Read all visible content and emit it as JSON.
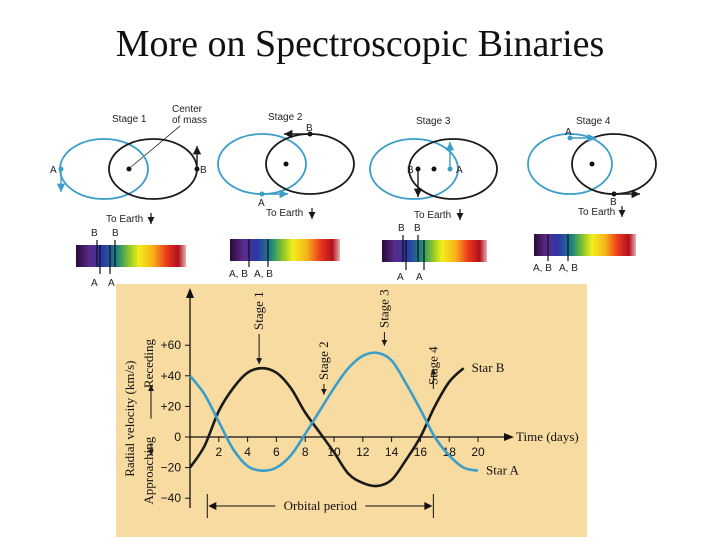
{
  "title": "More on Spectroscopic Binaries",
  "stages": [
    {
      "label": "Stage 1",
      "center_of_mass": "Center\nof mass",
      "star_a": "A",
      "star_b": "B",
      "to_earth": "To Earth",
      "spectrum_top": [
        "B",
        "B"
      ],
      "spectrum_bottom": [
        "A",
        "A"
      ]
    },
    {
      "label": "Stage 2",
      "star_a": "A",
      "star_b": "B",
      "to_earth": "To Earth",
      "spectrum_bottom": [
        "A, B",
        "A, B"
      ]
    },
    {
      "label": "Stage 3",
      "star_a": "A",
      "star_b": "B",
      "to_earth": "To Earth",
      "spectrum_top": [
        "B",
        "B"
      ],
      "spectrum_bottom": [
        "A",
        "A"
      ]
    },
    {
      "label": "Stage 4",
      "star_a": "A",
      "star_b": "B",
      "to_earth": "To Earth",
      "spectrum_bottom": [
        "A, B",
        "A, B"
      ]
    }
  ],
  "colors": {
    "star_a_orbit": "#3a9ec9",
    "star_b_orbit": "#1a1a1a",
    "graph_bg": "#f8dba0"
  },
  "chart_data": {
    "type": "line",
    "xlabel": "Time (days)",
    "ylabel": "Radial velocity (km/s)",
    "ylabel_receding": "Receding",
    "ylabel_approaching": "Approaching",
    "xlim": [
      0,
      21
    ],
    "ylim": [
      -45,
      70
    ],
    "xticks": [
      2,
      4,
      6,
      8,
      10,
      12,
      14,
      16,
      18,
      20
    ],
    "xtick_labels": [
      "2",
      "4",
      "6",
      "8",
      "10",
      "12",
      "14",
      "16",
      "18",
      "20"
    ],
    "yticks": [
      60,
      40,
      20,
      0,
      -20,
      -40
    ],
    "ytick_labels": [
      "+60",
      "+40",
      "+20",
      "0",
      "−20",
      "−40"
    ],
    "series": [
      {
        "name": "Star B",
        "color": "#1a1a1a",
        "x": [
          0,
          1,
          2,
          3,
          4,
          5,
          6,
          7,
          8,
          9,
          10,
          11,
          12,
          13,
          14,
          15,
          16,
          17,
          18,
          19
        ],
        "y": [
          -20,
          -6,
          17,
          32,
          42,
          45,
          42,
          32,
          16,
          3,
          -10,
          -24,
          -30,
          -32,
          -28,
          -15,
          0,
          20,
          36,
          45
        ]
      },
      {
        "name": "Star A",
        "color": "#3a9ec9",
        "x": [
          0,
          1,
          2,
          3,
          4,
          5,
          6,
          7,
          8,
          9,
          10,
          11,
          12,
          13,
          14,
          15,
          16,
          17,
          18,
          19,
          20
        ],
        "y": [
          40,
          28,
          10,
          -8,
          -19,
          -22,
          -20,
          -12,
          2,
          17,
          32,
          45,
          53,
          55,
          50,
          35,
          18,
          0,
          -12,
          -20,
          -22
        ]
      }
    ],
    "annotations": [
      {
        "text": "Stage 1",
        "x": 4.8
      },
      {
        "text": "Stage 2",
        "x": 9.3
      },
      {
        "text": "Stage 3",
        "x": 13.5
      },
      {
        "text": "Stage 4",
        "x": 16.9
      }
    ],
    "period_label": "Orbital period",
    "period_range": [
      1.2,
      16.9
    ]
  }
}
